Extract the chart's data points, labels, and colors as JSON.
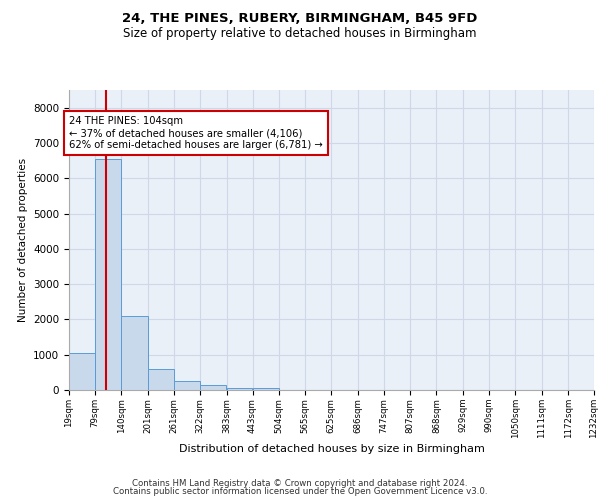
{
  "title1": "24, THE PINES, RUBERY, BIRMINGHAM, B45 9FD",
  "title2": "Size of property relative to detached houses in Birmingham",
  "xlabel": "Distribution of detached houses by size in Birmingham",
  "ylabel": "Number of detached properties",
  "footer1": "Contains HM Land Registry data © Crown copyright and database right 2024.",
  "footer2": "Contains public sector information licensed under the Open Government Licence v3.0.",
  "bar_color": "#c9d9ec",
  "bar_edge_color": "#5b9bd5",
  "grid_color": "#d0d8e8",
  "background_color": "#eaf0f8",
  "annotation_text": "24 THE PINES: 104sqm\n← 37% of detached houses are smaller (4,106)\n62% of semi-detached houses are larger (6,781) →",
  "vline_color": "#cc0000",
  "vline_x": 104,
  "bins": [
    19,
    79,
    140,
    201,
    261,
    322,
    383,
    443,
    504,
    565,
    625,
    686,
    747,
    807,
    868,
    929,
    990,
    1050,
    1111,
    1172,
    1232
  ],
  "bin_labels": [
    "19sqm",
    "79sqm",
    "140sqm",
    "201sqm",
    "261sqm",
    "322sqm",
    "383sqm",
    "443sqm",
    "504sqm",
    "565sqm",
    "625sqm",
    "686sqm",
    "747sqm",
    "807sqm",
    "868sqm",
    "929sqm",
    "990sqm",
    "1050sqm",
    "1111sqm",
    "1172sqm",
    "1232sqm"
  ],
  "bar_heights": [
    1050,
    6550,
    2100,
    590,
    250,
    130,
    65,
    45,
    10,
    5,
    2,
    0,
    0,
    0,
    0,
    0,
    0,
    0,
    0,
    0
  ],
  "ylim": [
    0,
    8500
  ],
  "yticks": [
    0,
    1000,
    2000,
    3000,
    4000,
    5000,
    6000,
    7000,
    8000
  ]
}
